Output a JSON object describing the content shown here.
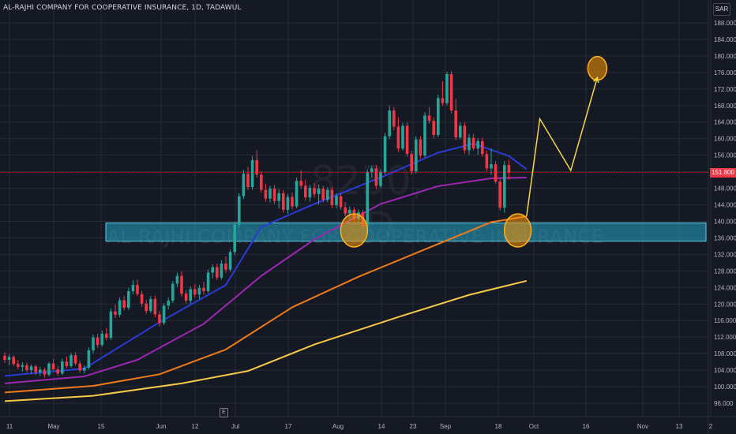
{
  "header": {
    "title": "AL-RAJHI COMPANY FOR COOPERATIVE INSURANCE, 1D, TADAWUL",
    "currency": "SAR"
  },
  "watermark": {
    "symbol": "8230, 1D",
    "name": "AL-RAJHI COMPANY FOR COOPERATIVE INSURANCE"
  },
  "earnings_badge": "E",
  "last_price_label": "151.800",
  "chart_data": {
    "type": "candlestick",
    "title": "AL-RAJHI COMPANY FOR COOPERATIVE INSURANCE, 1D, TADAWUL",
    "ylim": [
      94,
      190
    ],
    "y_ticks": [
      "96.000",
      "100.000",
      "104.000",
      "108.000",
      "112.000",
      "116.000",
      "120.000",
      "124.000",
      "128.000",
      "132.000",
      "136.000",
      "140.000",
      "144.000",
      "148.000",
      "152.000",
      "156.000",
      "160.000",
      "164.000",
      "168.000",
      "172.000",
      "176.000",
      "180.000",
      "184.000",
      "188.000"
    ],
    "x_ticks": [
      "11",
      "May",
      "15",
      "Jun",
      "12",
      "Jul",
      "17",
      "Aug",
      "14",
      "23",
      "Sep",
      "18",
      "Oct",
      "16",
      "Nov",
      "13",
      "2"
    ],
    "last_price": 151.8,
    "colors": {
      "up": "#26a69a",
      "down": "#f23645",
      "background": "#151924",
      "grid": "#262b38"
    },
    "candles_ohlc": [
      [
        107.5,
        108.3,
        105.8,
        106.5
      ],
      [
        106.5,
        107.8,
        105.2,
        107.2
      ],
      [
        107.2,
        107.6,
        105.0,
        105.5
      ],
      [
        105.5,
        106.4,
        104.2,
        104.8
      ],
      [
        104.8,
        105.9,
        103.6,
        105.2
      ],
      [
        105.2,
        105.8,
        103.4,
        104.0
      ],
      [
        104.0,
        105.4,
        103.1,
        104.9
      ],
      [
        104.9,
        105.3,
        102.8,
        103.5
      ],
      [
        103.5,
        104.8,
        102.6,
        104.1
      ],
      [
        104.1,
        104.6,
        102.2,
        102.9
      ],
      [
        102.9,
        106.0,
        102.5,
        105.6
      ],
      [
        105.6,
        106.7,
        103.9,
        104.2
      ],
      [
        104.2,
        105.0,
        102.6,
        103.2
      ],
      [
        103.2,
        106.8,
        102.8,
        106.1
      ],
      [
        106.1,
        107.3,
        104.5,
        105.0
      ],
      [
        105.0,
        108.2,
        104.6,
        107.6
      ],
      [
        107.6,
        108.4,
        105.1,
        105.6
      ],
      [
        105.6,
        106.3,
        103.4,
        103.9
      ],
      [
        103.9,
        105.2,
        103.2,
        104.6
      ],
      [
        104.6,
        109.5,
        104.2,
        108.8
      ],
      [
        108.8,
        112.6,
        108.1,
        111.9
      ],
      [
        111.9,
        112.8,
        109.4,
        110.1
      ],
      [
        110.1,
        113.6,
        109.6,
        112.8
      ],
      [
        112.8,
        114.2,
        111.2,
        111.8
      ],
      [
        111.8,
        118.9,
        111.3,
        118.2
      ],
      [
        118.2,
        119.8,
        116.6,
        117.4
      ],
      [
        117.4,
        121.6,
        116.8,
        120.9
      ],
      [
        120.9,
        121.9,
        118.4,
        119.1
      ],
      [
        119.1,
        123.9,
        118.6,
        123.1
      ],
      [
        123.1,
        125.8,
        122.3,
        124.6
      ],
      [
        124.6,
        125.9,
        121.9,
        122.4
      ],
      [
        122.4,
        123.2,
        119.4,
        120.1
      ],
      [
        120.1,
        121.0,
        117.6,
        118.3
      ],
      [
        118.3,
        121.9,
        117.8,
        121.2
      ],
      [
        121.2,
        122.0,
        116.8,
        117.5
      ],
      [
        117.5,
        118.3,
        114.6,
        115.4
      ],
      [
        115.4,
        120.2,
        114.9,
        119.6
      ],
      [
        119.6,
        121.6,
        118.7,
        120.8
      ],
      [
        120.8,
        125.6,
        120.2,
        124.9
      ],
      [
        124.9,
        127.6,
        124.1,
        126.8
      ],
      [
        126.8,
        127.9,
        121.8,
        122.5
      ],
      [
        122.5,
        123.4,
        120.1,
        120.8
      ],
      [
        120.8,
        124.3,
        120.0,
        123.6
      ],
      [
        123.6,
        124.8,
        121.6,
        122.3
      ],
      [
        122.3,
        124.6,
        121.2,
        123.9
      ],
      [
        123.9,
        125.4,
        122.3,
        123.1
      ],
      [
        123.1,
        128.4,
        122.6,
        127.6
      ],
      [
        127.6,
        129.6,
        126.2,
        128.9
      ],
      [
        128.9,
        129.8,
        125.8,
        126.4
      ],
      [
        126.4,
        130.6,
        125.9,
        129.8
      ],
      [
        129.8,
        131.5,
        127.6,
        128.3
      ],
      [
        128.3,
        133.2,
        127.8,
        132.6
      ],
      [
        132.6,
        139.9,
        131.8,
        139.2
      ],
      [
        139.2,
        146.8,
        138.5,
        146.1
      ],
      [
        146.1,
        152.4,
        145.4,
        151.5
      ],
      [
        151.5,
        153.2,
        147.6,
        148.3
      ],
      [
        148.3,
        155.8,
        147.6,
        154.8
      ],
      [
        154.8,
        157.2,
        150.6,
        151.3
      ],
      [
        151.3,
        152.1,
        146.9,
        147.6
      ],
      [
        147.6,
        149.1,
        144.8,
        145.5
      ],
      [
        145.5,
        148.6,
        144.6,
        147.9
      ],
      [
        147.9,
        148.8,
        144.2,
        144.9
      ],
      [
        144.9,
        147.8,
        143.1,
        146.8
      ],
      [
        146.8,
        147.6,
        142.1,
        142.8
      ],
      [
        142.8,
        146.6,
        141.8,
        145.9
      ],
      [
        145.9,
        146.9,
        142.8,
        143.6
      ],
      [
        143.6,
        150.6,
        143.1,
        149.8
      ],
      [
        149.8,
        152.4,
        147.9,
        148.6
      ],
      [
        148.6,
        150.1,
        145.1,
        145.8
      ],
      [
        145.8,
        148.8,
        144.8,
        148.1
      ],
      [
        148.1,
        149.2,
        145.8,
        146.6
      ],
      [
        146.6,
        148.9,
        144.1,
        147.9
      ],
      [
        147.9,
        148.6,
        144.6,
        145.2
      ],
      [
        145.2,
        148.2,
        144.6,
        147.6
      ],
      [
        147.6,
        148.3,
        143.2,
        143.9
      ],
      [
        143.9,
        146.8,
        143.1,
        146.1
      ],
      [
        146.1,
        146.8,
        142.8,
        143.4
      ],
      [
        143.4,
        144.6,
        141.2,
        141.9
      ],
      [
        141.9,
        143.6,
        140.4,
        142.8
      ],
      [
        142.8,
        143.4,
        139.9,
        140.6
      ],
      [
        140.6,
        142.9,
        139.6,
        142.2
      ],
      [
        142.2,
        142.8,
        138.2,
        138.9
      ],
      [
        138.9,
        152.6,
        138.4,
        151.9
      ],
      [
        151.9,
        153.4,
        150.6,
        152.8
      ],
      [
        152.8,
        153.6,
        147.8,
        148.6
      ],
      [
        148.6,
        152.6,
        148.1,
        151.9
      ],
      [
        151.9,
        161.4,
        151.3,
        160.6
      ],
      [
        160.6,
        167.9,
        159.9,
        166.8
      ],
      [
        166.8,
        167.6,
        162.1,
        162.9
      ],
      [
        162.9,
        165.2,
        156.8,
        157.6
      ],
      [
        157.6,
        163.8,
        157.1,
        163.1
      ],
      [
        163.1,
        163.9,
        155.6,
        156.3
      ],
      [
        156.3,
        157.1,
        151.3,
        152.1
      ],
      [
        152.1,
        160.6,
        151.6,
        159.8
      ],
      [
        159.8,
        160.6,
        155.1,
        155.9
      ],
      [
        155.9,
        166.4,
        155.4,
        165.6
      ],
      [
        165.6,
        167.6,
        163.6,
        164.3
      ],
      [
        164.3,
        165.1,
        160.1,
        160.9
      ],
      [
        160.9,
        170.6,
        160.4,
        169.8
      ],
      [
        169.8,
        173.9,
        167.9,
        168.6
      ],
      [
        168.6,
        176.2,
        168.1,
        175.6
      ],
      [
        175.6,
        176.4,
        166.1,
        166.8
      ],
      [
        166.8,
        169.6,
        159.6,
        160.3
      ],
      [
        160.3,
        163.9,
        159.8,
        163.1
      ],
      [
        163.1,
        163.9,
        156.4,
        157.2
      ],
      [
        157.2,
        161.1,
        156.1,
        160.2
      ],
      [
        160.2,
        161.1,
        157.1,
        157.6
      ],
      [
        157.6,
        160.1,
        156.1,
        159.4
      ],
      [
        159.4,
        160.2,
        155.6,
        156.3
      ],
      [
        156.3,
        157.1,
        152.1,
        152.8
      ],
      [
        152.8,
        157.6,
        151.2,
        153.8
      ],
      [
        153.8,
        154.6,
        149.1,
        149.6
      ],
      [
        149.6,
        150.6,
        142.6,
        143.3
      ],
      [
        143.3,
        154.6,
        142.1,
        153.6
      ],
      [
        153.6,
        154.9,
        150.1,
        151.8
      ]
    ],
    "ma_series": [
      {
        "color": "#2a3bd6",
        "values": [
          [
            0,
            102.6
          ],
          [
            18,
            104.4
          ],
          [
            35,
            115.6
          ],
          [
            50,
            124.6
          ],
          [
            58,
            138.6
          ],
          [
            70,
            144.2
          ],
          [
            85,
            150.6
          ],
          [
            98,
            156.6
          ],
          [
            106,
            158.8
          ],
          [
            114,
            155.8
          ],
          [
            118,
            152.6
          ]
        ]
      },
      {
        "color": "#9c27b0",
        "values": [
          [
            0,
            100.8
          ],
          [
            18,
            102.5
          ],
          [
            30,
            106.5
          ],
          [
            45,
            115.2
          ],
          [
            58,
            126.8
          ],
          [
            70,
            135.6
          ],
          [
            85,
            144.2
          ],
          [
            98,
            148.5
          ],
          [
            110,
            150.4
          ],
          [
            118,
            150.6
          ]
        ]
      },
      {
        "color": "#ef7a1a",
        "values": [
          [
            0,
            98.6
          ],
          [
            20,
            100.2
          ],
          [
            35,
            103.0
          ],
          [
            50,
            109.0
          ],
          [
            65,
            119.2
          ],
          [
            80,
            126.6
          ],
          [
            95,
            133.2
          ],
          [
            110,
            139.8
          ],
          [
            118,
            141.2
          ]
        ]
      },
      {
        "color": "#f7c948",
        "values": [
          [
            0,
            96.5
          ],
          [
            20,
            97.8
          ],
          [
            40,
            100.8
          ],
          [
            55,
            103.8
          ],
          [
            70,
            110.2
          ],
          [
            90,
            117.2
          ],
          [
            105,
            122.2
          ],
          [
            118,
            125.6
          ]
        ]
      }
    ],
    "support_zone": [
      135.2,
      139.6
    ],
    "forecast_path": [
      [
        118,
        141.2
      ],
      [
        121,
        164.8
      ],
      [
        128,
        152.3
      ],
      [
        134,
        174.8
      ]
    ],
    "circles": [
      {
        "index": 79,
        "price": 137.8
      },
      {
        "index": 116,
        "price": 137.8
      },
      {
        "index": 134,
        "price": 177.0
      }
    ]
  }
}
